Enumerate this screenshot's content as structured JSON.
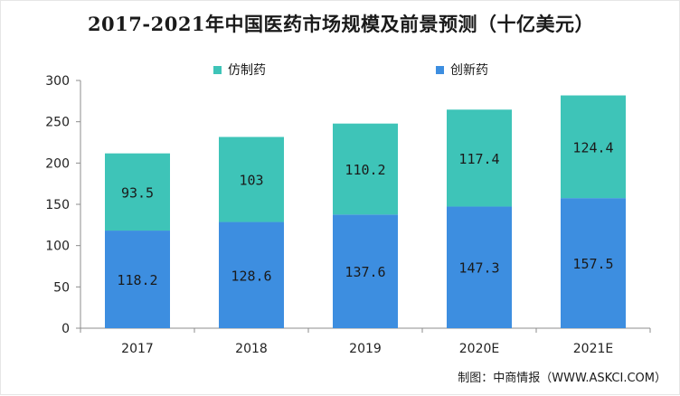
{
  "colors": {
    "generic": "#3d8ee0",
    "innovative": "#3ec4b8",
    "axis": "#8c8c8c",
    "grid": "#d9d9d9"
  },
  "chart_data": {
    "type": "bar",
    "stacked": true,
    "title": "2017-2021年中国医药市场规模及前景预测（十亿美元）",
    "categories": [
      "2017",
      "2018",
      "2019",
      "2020E",
      "2021E"
    ],
    "series": [
      {
        "name": "创新药",
        "values": [
          118.2,
          128.6,
          137.6,
          147.3,
          157.5
        ],
        "value_labels": [
          "118.2",
          "128.6",
          "137.6",
          "147.3",
          "157.5"
        ]
      },
      {
        "name": "仿制药",
        "values": [
          93.5,
          103,
          110.2,
          117.4,
          124.4
        ],
        "value_labels": [
          "93.5",
          "103",
          "110.2",
          "117.4",
          "124.4"
        ]
      }
    ],
    "ylim": [
      0,
      300
    ],
    "yticks": [
      "0",
      "50",
      "100",
      "150",
      "200",
      "250",
      "300"
    ],
    "grid": false,
    "legend_position": "top"
  },
  "footer": {
    "source": "制图：中商情报（WWW.ASKCI.COM）"
  }
}
